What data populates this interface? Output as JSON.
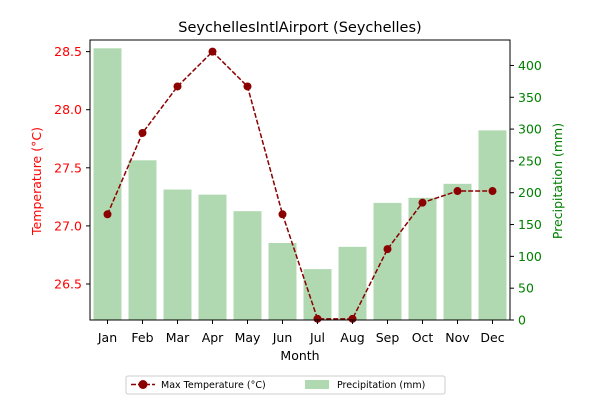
{
  "chart_data": {
    "type": "bar+line",
    "title": "SeychellesIntlAirport (Seychelles)",
    "xlabel": "Month",
    "categories": [
      "Jan",
      "Feb",
      "Mar",
      "Apr",
      "May",
      "Jun",
      "Jul",
      "Aug",
      "Sep",
      "Oct",
      "Nov",
      "Dec"
    ],
    "temperature": {
      "name": "Max Temperature (°C)",
      "axis_label": "Temperature (°C)",
      "axis": "left",
      "color": "#8b0000",
      "line_style": "dashed",
      "marker": "circle",
      "values": [
        27.1,
        27.8,
        28.2,
        28.5,
        28.2,
        27.1,
        26.2,
        26.2,
        26.8,
        27.2,
        27.3,
        27.3
      ],
      "ylim": [
        26.19,
        28.6
      ],
      "ticks": [
        26.5,
        27.0,
        27.5,
        28.0,
        28.5
      ],
      "tick_labels": [
        "26.5",
        "27.0",
        "27.5",
        "28.0",
        "28.5"
      ],
      "tick_color": "#ff0000"
    },
    "precipitation": {
      "name": "Precipitation (mm)",
      "axis_label": "Precipitation (mm)",
      "axis": "right",
      "color": "#b0d9b1",
      "values": [
        427,
        251,
        205,
        197,
        171,
        121,
        80,
        115,
        184,
        192,
        214,
        298
      ],
      "ylim": [
        0,
        440
      ],
      "ticks": [
        0,
        50,
        100,
        150,
        200,
        250,
        300,
        350,
        400
      ],
      "tick_labels": [
        "0",
        "50",
        "100",
        "150",
        "200",
        "250",
        "300",
        "350",
        "400"
      ],
      "tick_color": "#008000"
    },
    "grid": false,
    "legend_position": "bottom-center"
  }
}
